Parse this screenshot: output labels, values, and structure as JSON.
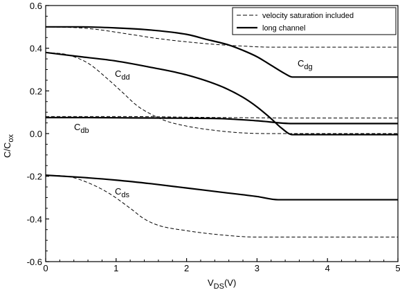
{
  "chart_data": {
    "type": "line",
    "xlabel": "V",
    "xlabel_sub": "DS",
    "xlabel_unit": "(V)",
    "ylabel": "C/C",
    "ylabel_sub": "ox",
    "xlim": [
      0,
      5
    ],
    "ylim": [
      -0.6,
      0.6
    ],
    "x_ticks": [
      0,
      1,
      2,
      3,
      4,
      5
    ],
    "y_ticks": [
      -0.6,
      -0.4,
      -0.2,
      0.0,
      0.2,
      0.4,
      0.6
    ],
    "x_tick_labels": [
      "0",
      "1",
      "2",
      "3",
      "4",
      "5"
    ],
    "y_tick_labels": [
      "-0.6",
      "-0.4",
      "-0.2",
      "0.0",
      "0.2",
      "0.4",
      "0.6"
    ],
    "grid": false,
    "legend_position": "top-right",
    "legend": [
      {
        "label": "velocity saturation included",
        "style": "dashed"
      },
      {
        "label": "long channel",
        "style": "solid"
      }
    ],
    "curve_labels": [
      {
        "main": "C",
        "sub": "dg"
      },
      {
        "main": "C",
        "sub": "dd"
      },
      {
        "main": "C",
        "sub": "db"
      },
      {
        "main": "C",
        "sub": "ds"
      }
    ],
    "series": [
      {
        "curve": "dg",
        "style": "solid",
        "points": [
          [
            0,
            0.5
          ],
          [
            0.5,
            0.5
          ],
          [
            1,
            0.495
          ],
          [
            1.5,
            0.485
          ],
          [
            2,
            0.465
          ],
          [
            2.3,
            0.44
          ],
          [
            2.6,
            0.415
          ],
          [
            2.8,
            0.39
          ],
          [
            3,
            0.36
          ],
          [
            3.2,
            0.32
          ],
          [
            3.4,
            0.28
          ],
          [
            3.5,
            0.265
          ],
          [
            5,
            0.265
          ]
        ]
      },
      {
        "curve": "dg",
        "style": "dashed",
        "points": [
          [
            0,
            0.5
          ],
          [
            0.5,
            0.495
          ],
          [
            0.8,
            0.485
          ],
          [
            1,
            0.475
          ],
          [
            1.3,
            0.46
          ],
          [
            1.6,
            0.445
          ],
          [
            2,
            0.43
          ],
          [
            2.4,
            0.418
          ],
          [
            2.8,
            0.41
          ],
          [
            3.2,
            0.405
          ],
          [
            5,
            0.405
          ]
        ]
      },
      {
        "curve": "dd",
        "style": "solid",
        "points": [
          [
            0,
            0.38
          ],
          [
            0.5,
            0.36
          ],
          [
            1,
            0.34
          ],
          [
            1.5,
            0.31
          ],
          [
            2,
            0.275
          ],
          [
            2.5,
            0.22
          ],
          [
            2.8,
            0.17
          ],
          [
            3,
            0.125
          ],
          [
            3.2,
            0.07
          ],
          [
            3.35,
            0.025
          ],
          [
            3.5,
            -0.005
          ],
          [
            5,
            -0.005
          ]
        ]
      },
      {
        "curve": "dd",
        "style": "dashed",
        "points": [
          [
            0,
            0.38
          ],
          [
            0.3,
            0.37
          ],
          [
            0.6,
            0.33
          ],
          [
            0.9,
            0.25
          ],
          [
            1.1,
            0.19
          ],
          [
            1.3,
            0.13
          ],
          [
            1.5,
            0.09
          ],
          [
            1.7,
            0.06
          ],
          [
            2,
            0.035
          ],
          [
            2.4,
            0.015
          ],
          [
            2.8,
            0.003
          ],
          [
            3.2,
            0.0
          ],
          [
            5,
            0.0
          ]
        ]
      },
      {
        "curve": "db",
        "style": "solid",
        "points": [
          [
            0,
            0.075
          ],
          [
            0.5,
            0.075
          ],
          [
            1,
            0.074
          ],
          [
            1.5,
            0.073
          ],
          [
            2,
            0.072
          ],
          [
            2.5,
            0.07
          ],
          [
            3,
            0.06
          ],
          [
            3.5,
            0.047
          ],
          [
            5,
            0.047
          ]
        ]
      },
      {
        "curve": "db",
        "style": "dashed",
        "points": [
          [
            0,
            0.08
          ],
          [
            0.5,
            0.08
          ],
          [
            1,
            0.08
          ],
          [
            1.5,
            0.079
          ],
          [
            2,
            0.077
          ],
          [
            2.5,
            0.075
          ],
          [
            3,
            0.074
          ],
          [
            3.5,
            0.073
          ],
          [
            5,
            0.073
          ]
        ]
      },
      {
        "curve": "ds",
        "style": "solid",
        "points": [
          [
            0,
            -0.195
          ],
          [
            0.5,
            -0.205
          ],
          [
            1,
            -0.218
          ],
          [
            1.5,
            -0.235
          ],
          [
            2,
            -0.255
          ],
          [
            2.5,
            -0.275
          ],
          [
            3,
            -0.295
          ],
          [
            3.3,
            -0.31
          ],
          [
            5,
            -0.31
          ]
        ]
      },
      {
        "curve": "ds",
        "style": "dashed",
        "points": [
          [
            0,
            -0.195
          ],
          [
            0.3,
            -0.2
          ],
          [
            0.6,
            -0.23
          ],
          [
            0.9,
            -0.28
          ],
          [
            1.2,
            -0.35
          ],
          [
            1.4,
            -0.4
          ],
          [
            1.6,
            -0.43
          ],
          [
            2,
            -0.455
          ],
          [
            2.5,
            -0.475
          ],
          [
            3,
            -0.485
          ],
          [
            5,
            -0.485
          ]
        ]
      }
    ]
  }
}
